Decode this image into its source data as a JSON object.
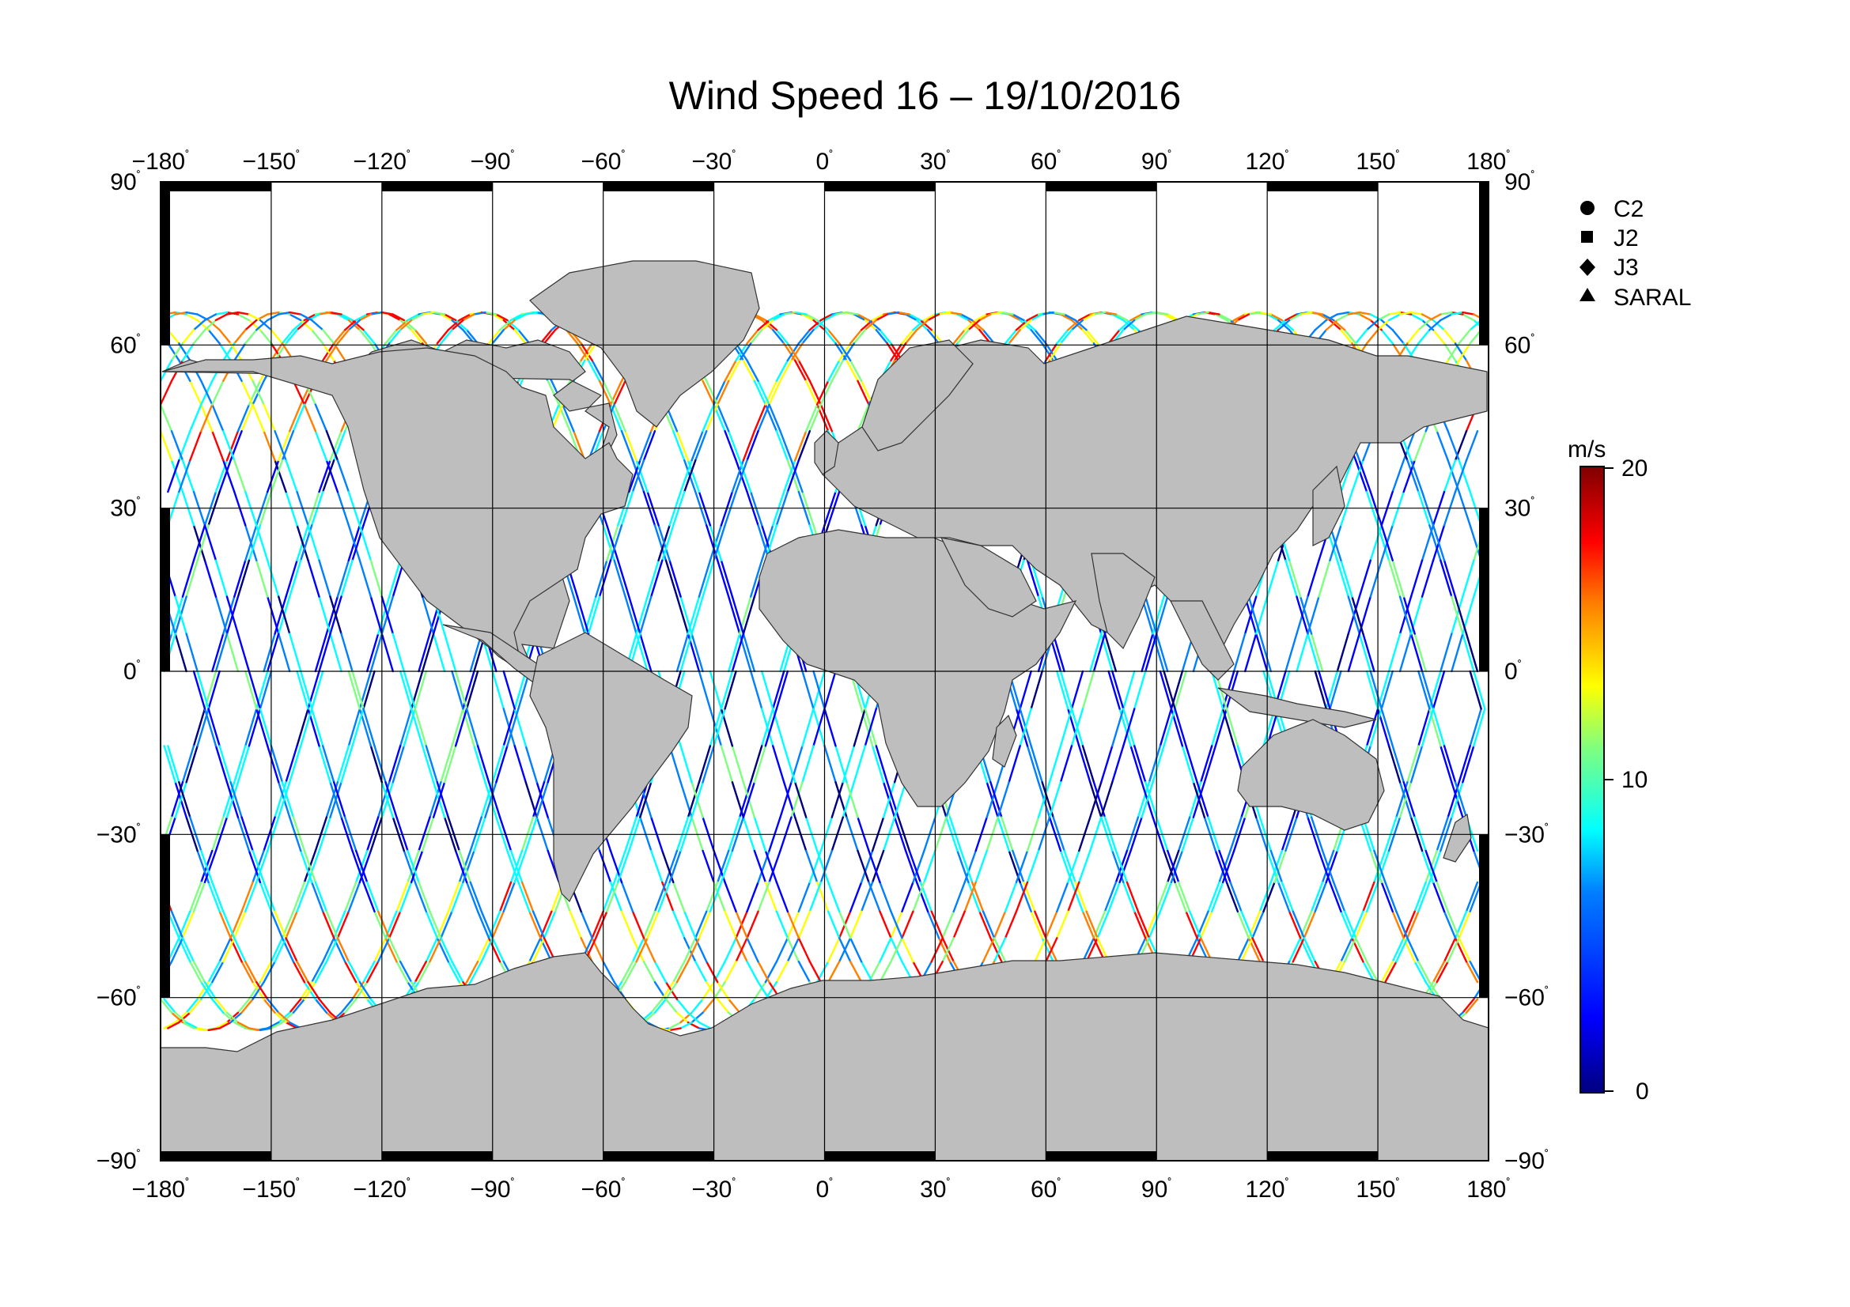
{
  "title": "Wind Speed 16 – 19/10/2016",
  "map": {
    "lon_ticks": [
      -180,
      -150,
      -120,
      -90,
      -60,
      -30,
      0,
      30,
      60,
      90,
      120,
      150,
      180
    ],
    "lat_ticks": [
      90,
      60,
      30,
      0,
      -30,
      -60,
      -90
    ],
    "lon_labels": [
      "−180",
      "−150",
      "−120",
      "−90",
      "−60",
      "−30",
      "0",
      "30",
      "60",
      "90",
      "120",
      "150",
      "180"
    ],
    "lat_labels": [
      "90",
      "60",
      "30",
      "0",
      "−30",
      "−60",
      "−90"
    ],
    "degree_mark": "˚",
    "land_color": "#bebebe",
    "ocean_color": "#ffffff"
  },
  "legend": {
    "items": [
      {
        "symbol": "circle",
        "label": "C2"
      },
      {
        "symbol": "square",
        "label": "J2"
      },
      {
        "symbol": "diamond",
        "label": "J3"
      },
      {
        "symbol": "triangle",
        "label": "SARAL"
      }
    ]
  },
  "colorbar": {
    "unit": "m/s",
    "min": 0,
    "max": 20,
    "ticks": [
      {
        "value": 20,
        "label": "20"
      },
      {
        "value": 10,
        "label": "10"
      },
      {
        "value": 0,
        "label": "0"
      }
    ],
    "colors": [
      "#00007f",
      "#0000ff",
      "#007fff",
      "#00ffff",
      "#7fff7f",
      "#ffff00",
      "#ff7f00",
      "#ff0000",
      "#7f0000"
    ]
  }
}
